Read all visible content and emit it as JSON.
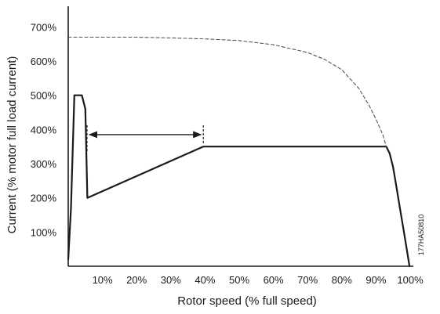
{
  "chart_data": {
    "type": "line",
    "xlabel": "Rotor speed (% full speed)",
    "ylabel": "Current (% motor full load current)",
    "xlim": [
      0,
      100
    ],
    "ylim": [
      0,
      750
    ],
    "x_ticks": [
      "10%",
      "20%",
      "30%",
      "40%",
      "50%",
      "60%",
      "70%",
      "80%",
      "90%",
      "100%"
    ],
    "y_ticks": [
      "100%",
      "200%",
      "300%",
      "400%",
      "500%",
      "600%",
      "700%"
    ],
    "x_tick_values": [
      10,
      20,
      30,
      40,
      50,
      60,
      70,
      80,
      90,
      100
    ],
    "y_tick_values": [
      100,
      200,
      300,
      400,
      500,
      600,
      700
    ],
    "figure_id": "177HA50810",
    "grid": false,
    "legend": "none",
    "series": [
      {
        "style": "solid",
        "color": "#1a1a1a",
        "x": [
          0,
          0.8,
          1.8,
          4,
          5,
          5.6,
          39.5,
          93,
          94,
          95,
          96,
          97,
          98,
          99,
          99.8
        ],
        "y": [
          20,
          170,
          500,
          500,
          460,
          200,
          350,
          350,
          330,
          290,
          230,
          170,
          110,
          50,
          0
        ]
      },
      {
        "style": "dashed",
        "color": "#555555",
        "x": [
          0,
          10,
          20,
          30,
          40,
          50,
          60,
          70,
          75,
          80,
          85,
          88,
          90,
          92,
          93
        ],
        "y": [
          670,
          670,
          670,
          668,
          665,
          660,
          648,
          625,
          605,
          575,
          520,
          470,
          430,
          385,
          350
        ]
      }
    ],
    "annotations": [
      {
        "type": "double-arrow",
        "from_x": 5.5,
        "to_x": 39.5,
        "y": 385,
        "color": "#1a1a1a"
      }
    ]
  }
}
